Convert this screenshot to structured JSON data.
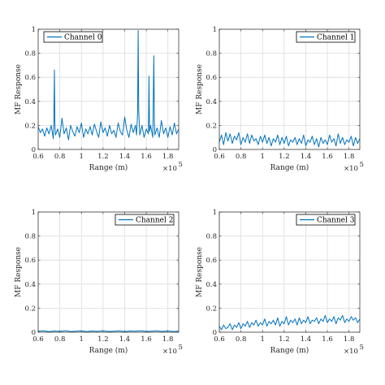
{
  "colors": {
    "series": "#0072BD",
    "grid": "#dcdcdc",
    "axis": "#262626",
    "legend_border": "#000000"
  },
  "chart_data": [
    {
      "type": "line",
      "title": "",
      "xlabel": "Range (m)",
      "ylabel": "MF Response",
      "x_exponent_label": "×10",
      "x_exponent_power": "5",
      "xlim": [
        0.6,
        1.9
      ],
      "ylim": [
        0,
        1
      ],
      "x_ticks": [
        "0.6",
        "0.8",
        "1",
        "1.2",
        "1.4",
        "1.6",
        "1.8"
      ],
      "y_ticks": [
        "0",
        "0.2",
        "0.4",
        "0.6",
        "0.8",
        "1"
      ],
      "grid": true,
      "legend_position": "top-left",
      "series": [
        {
          "name": "Channel 0",
          "x": [
            0.6,
            0.62,
            0.64,
            0.66,
            0.68,
            0.7,
            0.72,
            0.74,
            0.745,
            0.75,
            0.755,
            0.76,
            0.78,
            0.8,
            0.82,
            0.84,
            0.86,
            0.88,
            0.9,
            0.92,
            0.94,
            0.96,
            0.98,
            1.0,
            1.02,
            1.04,
            1.06,
            1.08,
            1.1,
            1.12,
            1.14,
            1.16,
            1.18,
            1.2,
            1.22,
            1.24,
            1.26,
            1.28,
            1.3,
            1.32,
            1.34,
            1.36,
            1.38,
            1.4,
            1.42,
            1.44,
            1.46,
            1.48,
            1.5,
            1.51,
            1.52,
            1.525,
            1.53,
            1.54,
            1.56,
            1.58,
            1.6,
            1.62,
            1.625,
            1.63,
            1.64,
            1.66,
            1.67,
            1.675,
            1.68,
            1.7,
            1.72,
            1.74,
            1.76,
            1.78,
            1.8,
            1.82,
            1.84,
            1.86,
            1.88,
            1.9
          ],
          "y": [
            0.19,
            0.14,
            0.17,
            0.11,
            0.18,
            0.13,
            0.2,
            0.09,
            0.25,
            0.66,
            0.2,
            0.12,
            0.17,
            0.1,
            0.26,
            0.13,
            0.18,
            0.08,
            0.2,
            0.15,
            0.11,
            0.19,
            0.14,
            0.22,
            0.1,
            0.17,
            0.13,
            0.19,
            0.12,
            0.21,
            0.15,
            0.1,
            0.23,
            0.14,
            0.18,
            0.11,
            0.2,
            0.13,
            0.16,
            0.1,
            0.22,
            0.15,
            0.12,
            0.27,
            0.16,
            0.1,
            0.21,
            0.14,
            0.2,
            0.12,
            0.3,
            0.99,
            0.32,
            0.12,
            0.2,
            0.1,
            0.17,
            0.13,
            0.61,
            0.15,
            0.2,
            0.1,
            0.78,
            0.22,
            0.12,
            0.18,
            0.1,
            0.24,
            0.13,
            0.18,
            0.1,
            0.19,
            0.12,
            0.22,
            0.13,
            0.17
          ]
        }
      ]
    },
    {
      "type": "line",
      "title": "",
      "xlabel": "Range (m)",
      "ylabel": "MF Response",
      "x_exponent_label": "×10",
      "x_exponent_power": "5",
      "xlim": [
        0.6,
        1.9
      ],
      "ylim": [
        0,
        1
      ],
      "x_ticks": [
        "0.6",
        "0.8",
        "1",
        "1.2",
        "1.4",
        "1.6",
        "1.8"
      ],
      "y_ticks": [
        "0",
        "0.2",
        "0.4",
        "0.6",
        "0.8",
        "1"
      ],
      "grid": true,
      "legend_position": "top-right",
      "series": [
        {
          "name": "Channel 1",
          "x": [
            0.6,
            0.62,
            0.64,
            0.66,
            0.68,
            0.7,
            0.72,
            0.74,
            0.76,
            0.78,
            0.8,
            0.82,
            0.84,
            0.86,
            0.88,
            0.9,
            0.92,
            0.94,
            0.96,
            0.98,
            1.0,
            1.02,
            1.04,
            1.06,
            1.08,
            1.1,
            1.12,
            1.14,
            1.16,
            1.18,
            1.2,
            1.22,
            1.24,
            1.26,
            1.28,
            1.3,
            1.32,
            1.34,
            1.36,
            1.38,
            1.4,
            1.42,
            1.44,
            1.46,
            1.48,
            1.5,
            1.52,
            1.54,
            1.56,
            1.58,
            1.6,
            1.62,
            1.64,
            1.66,
            1.68,
            1.7,
            1.72,
            1.74,
            1.76,
            1.78,
            1.8,
            1.82,
            1.84,
            1.86,
            1.88,
            1.9
          ],
          "y": [
            0.06,
            0.12,
            0.04,
            0.14,
            0.07,
            0.13,
            0.05,
            0.11,
            0.08,
            0.14,
            0.04,
            0.1,
            0.06,
            0.13,
            0.05,
            0.12,
            0.07,
            0.09,
            0.04,
            0.11,
            0.06,
            0.12,
            0.05,
            0.1,
            0.03,
            0.09,
            0.06,
            0.12,
            0.04,
            0.1,
            0.05,
            0.11,
            0.03,
            0.08,
            0.06,
            0.1,
            0.04,
            0.09,
            0.05,
            0.12,
            0.03,
            0.08,
            0.06,
            0.11,
            0.04,
            0.09,
            0.02,
            0.1,
            0.05,
            0.08,
            0.04,
            0.12,
            0.06,
            0.09,
            0.03,
            0.13,
            0.05,
            0.1,
            0.04,
            0.08,
            0.06,
            0.11,
            0.03,
            0.1,
            0.05,
            0.09
          ]
        }
      ]
    },
    {
      "type": "line",
      "title": "",
      "xlabel": "Range (m)",
      "ylabel": "MF Response",
      "x_exponent_label": "×10",
      "x_exponent_power": "5",
      "xlim": [
        0.6,
        1.9
      ],
      "ylim": [
        0,
        1
      ],
      "x_ticks": [
        "0.6",
        "0.8",
        "1",
        "1.2",
        "1.4",
        "1.6",
        "1.8"
      ],
      "y_ticks": [
        "0",
        "0.2",
        "0.4",
        "0.6",
        "0.8",
        "1"
      ],
      "grid": true,
      "legend_position": "top-right",
      "series": [
        {
          "name": "Channel 2",
          "x": [
            0.6,
            0.65,
            0.7,
            0.75,
            0.8,
            0.85,
            0.9,
            0.95,
            1.0,
            1.05,
            1.1,
            1.15,
            1.2,
            1.25,
            1.3,
            1.35,
            1.4,
            1.45,
            1.5,
            1.55,
            1.6,
            1.65,
            1.7,
            1.75,
            1.8,
            1.85,
            1.9
          ],
          "y": [
            0.008,
            0.012,
            0.005,
            0.01,
            0.007,
            0.013,
            0.006,
            0.009,
            0.011,
            0.005,
            0.01,
            0.007,
            0.012,
            0.006,
            0.009,
            0.011,
            0.005,
            0.01,
            0.008,
            0.012,
            0.006,
            0.009,
            0.011,
            0.007,
            0.01,
            0.006,
            0.009
          ]
        }
      ]
    },
    {
      "type": "line",
      "title": "",
      "xlabel": "Range (m)",
      "ylabel": "MF Response",
      "x_exponent_label": "×10",
      "x_exponent_power": "5",
      "xlim": [
        0.6,
        1.9
      ],
      "ylim": [
        0,
        1
      ],
      "x_ticks": [
        "0.6",
        "0.8",
        "1",
        "1.2",
        "1.4",
        "1.6",
        "1.8"
      ],
      "y_ticks": [
        "0",
        "0.2",
        "0.4",
        "0.6",
        "0.8",
        "1"
      ],
      "grid": true,
      "legend_position": "top-right",
      "series": [
        {
          "name": "Channel 3",
          "x": [
            0.6,
            0.62,
            0.64,
            0.66,
            0.68,
            0.7,
            0.72,
            0.74,
            0.76,
            0.78,
            0.8,
            0.82,
            0.84,
            0.86,
            0.88,
            0.9,
            0.92,
            0.94,
            0.96,
            0.98,
            1.0,
            1.02,
            1.04,
            1.06,
            1.08,
            1.1,
            1.12,
            1.14,
            1.16,
            1.18,
            1.2,
            1.22,
            1.24,
            1.26,
            1.28,
            1.3,
            1.32,
            1.34,
            1.36,
            1.38,
            1.4,
            1.42,
            1.44,
            1.46,
            1.48,
            1.5,
            1.52,
            1.54,
            1.56,
            1.58,
            1.6,
            1.62,
            1.64,
            1.66,
            1.68,
            1.7,
            1.72,
            1.74,
            1.76,
            1.78,
            1.8,
            1.82,
            1.84,
            1.86,
            1.88,
            1.9
          ],
          "y": [
            0.05,
            0.02,
            0.06,
            0.03,
            0.04,
            0.07,
            0.02,
            0.06,
            0.04,
            0.08,
            0.03,
            0.07,
            0.05,
            0.09,
            0.04,
            0.08,
            0.06,
            0.1,
            0.05,
            0.08,
            0.06,
            0.11,
            0.05,
            0.09,
            0.07,
            0.1,
            0.06,
            0.12,
            0.05,
            0.09,
            0.07,
            0.13,
            0.06,
            0.1,
            0.08,
            0.11,
            0.06,
            0.12,
            0.07,
            0.1,
            0.08,
            0.13,
            0.07,
            0.1,
            0.09,
            0.12,
            0.07,
            0.11,
            0.09,
            0.14,
            0.08,
            0.11,
            0.09,
            0.13,
            0.07,
            0.12,
            0.1,
            0.14,
            0.08,
            0.11,
            0.09,
            0.13,
            0.1,
            0.12,
            0.08,
            0.11
          ]
        }
      ]
    }
  ]
}
